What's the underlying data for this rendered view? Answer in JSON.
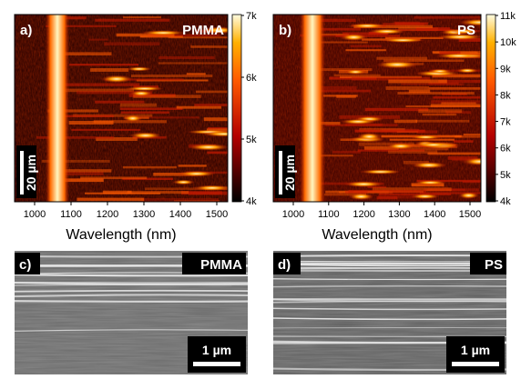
{
  "colors": {
    "heat_low": "#000000",
    "heat_mid": "#b30000",
    "heat_high": "#ff7a00",
    "heat_top": "#fffbe0",
    "sem_background": "#6e6e6e",
    "sem_line": "#e6e6e6"
  },
  "panels": {
    "a": {
      "label": "a)",
      "material": "PMMA",
      "scale_bar": "20 µm",
      "xlabel": "Wavelength (nm)",
      "xticks": [
        "1000",
        "1100",
        "1200",
        "1300",
        "1400",
        "1500"
      ],
      "colorbar_ticks": [
        "7k",
        "6k",
        "5k",
        "4k"
      ]
    },
    "b": {
      "label": "b)",
      "material": "PS",
      "scale_bar": "20 µm",
      "xlabel": "Wavelength (nm)",
      "xticks": [
        "1000",
        "1100",
        "1200",
        "1300",
        "1400",
        "1500"
      ],
      "colorbar_ticks": [
        "11k",
        "10k",
        "9k",
        "8k",
        "7k",
        "6k",
        "5k",
        "4k"
      ]
    },
    "c": {
      "label": "c)",
      "material": "PMMA",
      "scale_bar": "1 µm"
    },
    "d": {
      "label": "d)",
      "material": "PS",
      "scale_bar": "1 µm"
    }
  }
}
